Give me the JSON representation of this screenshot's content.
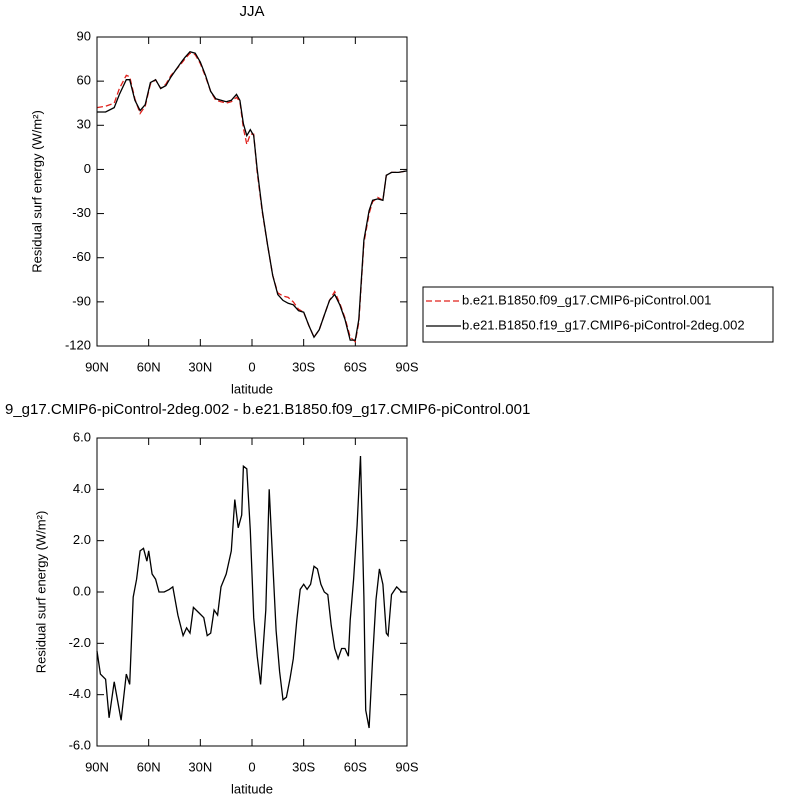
{
  "chart_data": [
    {
      "type": "line",
      "title": "JJA",
      "xlabel": "latitude",
      "ylabel": "Residual surf energy (W/m²)",
      "x": [
        90,
        85,
        80,
        77,
        73,
        71,
        68,
        65,
        62,
        59,
        56,
        53,
        50,
        47,
        44,
        41,
        39,
        36,
        33,
        30,
        27,
        24,
        21,
        18,
        15,
        12,
        9,
        7,
        5,
        3,
        1,
        -1,
        -3,
        -6,
        -9,
        -12,
        -15,
        -18,
        -21,
        -24,
        -27,
        -30,
        -33,
        -36,
        -39,
        -42,
        -45,
        -48,
        -51,
        -54,
        -57,
        -60,
        -62,
        -65,
        -68,
        -70,
        -73,
        -76,
        -78,
        -81,
        -85,
        -90
      ],
      "series": [
        {
          "name": "b.e21.B1850.f09_g17.CMIP6-piControl.001",
          "color": "#e0201b",
          "dash": true,
          "values": [
            42,
            43,
            45,
            55,
            64,
            63,
            48,
            38,
            43,
            58,
            61,
            55,
            58,
            64,
            68,
            72,
            75,
            79,
            78,
            72,
            63,
            53,
            47,
            46,
            45,
            46,
            49,
            46,
            28,
            17,
            24,
            24,
            -2,
            -29,
            -51,
            -72,
            -84,
            -86,
            -87,
            -90,
            -95,
            -97,
            -106,
            -114,
            -109,
            -99,
            -89,
            -83,
            -91,
            -101,
            -114,
            -117,
            -104,
            -50,
            -30,
            -22,
            -19,
            -21,
            -4,
            -2,
            -2,
            -1
          ]
        },
        {
          "name": "b.e21.B1850.f19_g17.CMIP6-piControl-2deg.002",
          "color": "#000000",
          "dash": false,
          "values": [
            39,
            39,
            42,
            51,
            61,
            61,
            47,
            40,
            44,
            59,
            61,
            55,
            57,
            63,
            68,
            73,
            76,
            80,
            79,
            73,
            64,
            53,
            48,
            47,
            46,
            47,
            51,
            47,
            31,
            23,
            27,
            23,
            0,
            -28,
            -51,
            -72,
            -85,
            -89,
            -91,
            -92,
            -96,
            -97,
            -106,
            -114,
            -109,
            -99,
            -89,
            -85,
            -92,
            -102,
            -116,
            -116,
            -102,
            -48,
            -28,
            -21,
            -20,
            -21,
            -4,
            -2,
            -2,
            -1
          ]
        }
      ],
      "xlim": [
        90,
        -90
      ],
      "xticks": [
        {
          "value": 90,
          "label": "90N"
        },
        {
          "value": 60,
          "label": "60N"
        },
        {
          "value": 30,
          "label": "30N"
        },
        0,
        {
          "value": -30,
          "label": "30S"
        },
        {
          "value": -60,
          "label": "60S"
        },
        {
          "value": -90,
          "label": "90S"
        }
      ],
      "ylim": [
        -120,
        90
      ],
      "yticks": [
        -120,
        -90,
        -60,
        -30,
        0,
        30,
        60,
        90
      ]
    },
    {
      "type": "line",
      "title": "9_g17.CMIP6-piControl-2deg.002 - b.e21.B1850.f09_g17.CMIP6-piControl.001",
      "xlabel": "latitude",
      "ylabel": "Residual surf energy (W/m²)",
      "x": [
        90,
        88,
        85,
        83,
        80,
        76,
        73,
        71,
        69,
        67,
        65,
        63,
        61,
        60,
        58,
        56,
        54,
        51,
        48,
        46,
        43,
        40,
        38,
        36,
        34,
        31,
        28,
        26,
        24,
        22,
        20,
        18,
        15,
        12,
        10,
        8,
        6,
        5,
        3,
        1,
        -1,
        -3,
        -5,
        -8,
        -10,
        -12,
        -14,
        -16,
        -18,
        -20,
        -22,
        -24,
        -26,
        -28,
        -30,
        -32,
        -34,
        -36,
        -38,
        -40,
        -42,
        -44,
        -46,
        -48,
        -50,
        -52,
        -54,
        -56,
        -57,
        -59,
        -61,
        -63,
        -65,
        -66,
        -68,
        -70,
        -72,
        -74,
        -76,
        -78,
        -79,
        -81,
        -84,
        -87,
        -90
      ],
      "values": [
        -2.3,
        -3.2,
        -3.4,
        -4.9,
        -3.5,
        -5.0,
        -3.2,
        -3.6,
        -0.2,
        0.5,
        1.6,
        1.7,
        1.2,
        1.6,
        0.7,
        0.5,
        0.0,
        0.0,
        0.1,
        0.2,
        -0.9,
        -1.7,
        -1.4,
        -1.6,
        -0.6,
        -0.8,
        -1.0,
        -1.7,
        -1.6,
        -0.7,
        -0.9,
        0.2,
        0.7,
        1.6,
        3.6,
        2.5,
        3.0,
        4.9,
        4.8,
        2.4,
        -1.0,
        -2.5,
        -3.6,
        -0.7,
        4.0,
        1.2,
        -1.5,
        -3.1,
        -4.2,
        -4.1,
        -3.4,
        -2.6,
        -1.1,
        0.1,
        0.3,
        0.1,
        0.3,
        1.0,
        0.9,
        0.3,
        0.0,
        -0.1,
        -1.3,
        -2.2,
        -2.6,
        -2.2,
        -2.2,
        -2.5,
        -1.1,
        0.5,
        2.6,
        5.3,
        -0.2,
        -4.6,
        -5.3,
        -2.6,
        -0.3,
        0.9,
        0.3,
        -1.6,
        -1.7,
        -0.1,
        0.2,
        0.0,
        0.0
      ],
      "color": "#000000",
      "xlim": [
        90,
        -90
      ],
      "xticks": [
        {
          "value": 90,
          "label": "90N"
        },
        {
          "value": 60,
          "label": "60N"
        },
        {
          "value": 30,
          "label": "30N"
        },
        0,
        {
          "value": -30,
          "label": "30S"
        },
        {
          "value": -60,
          "label": "60S"
        },
        {
          "value": -90,
          "label": "90S"
        }
      ],
      "ylim": [
        -6,
        6
      ],
      "yticks": [
        {
          "value": -6,
          "label": "-6.0"
        },
        {
          "value": -4,
          "label": "-4.0"
        },
        {
          "value": -2,
          "label": "-2.0"
        },
        {
          "value": 0,
          "label": "0.0"
        },
        {
          "value": 2,
          "label": "2.0"
        },
        {
          "value": 4,
          "label": "4.0"
        },
        {
          "value": 6,
          "label": "6.0"
        }
      ]
    }
  ]
}
